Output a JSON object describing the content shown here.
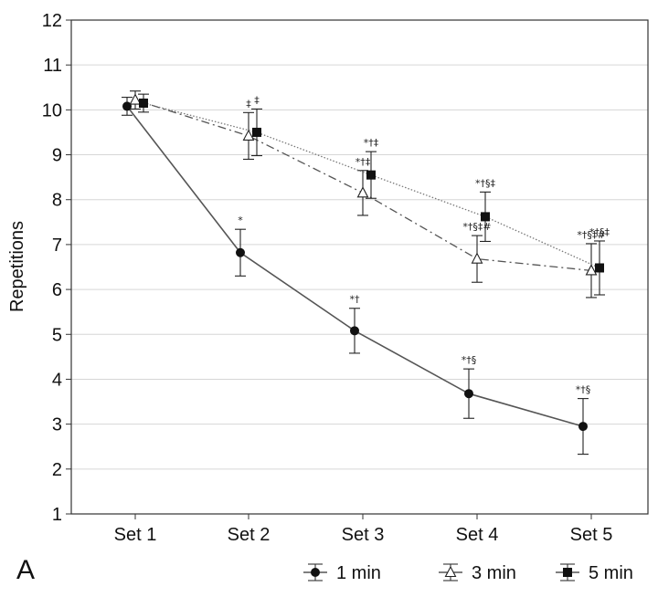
{
  "panel_label": "A",
  "chart_data": {
    "type": "line",
    "title": "",
    "xlabel": "",
    "ylabel": "Repetitions",
    "categories": [
      "Set 1",
      "Set 2",
      "Set 3",
      "Set 4",
      "Set 5"
    ],
    "ylim": [
      1,
      12
    ],
    "yticks": [
      1,
      2,
      3,
      4,
      5,
      6,
      7,
      8,
      9,
      10,
      11,
      12
    ],
    "grid": "horizontal",
    "legend_position": "bottom",
    "series": [
      {
        "name": "1 min",
        "marker": "circle-filled",
        "line": "solid",
        "values": [
          10.08,
          6.82,
          5.08,
          3.68,
          2.95
        ],
        "errors": [
          0.2,
          0.52,
          0.5,
          0.55,
          0.62
        ],
        "annotations": [
          "",
          "*",
          "*†",
          "*†§",
          "*†§"
        ]
      },
      {
        "name": "3 min",
        "marker": "triangle-open",
        "line": "dashdot",
        "values": [
          10.22,
          9.42,
          8.15,
          6.68,
          6.42
        ],
        "errors": [
          0.2,
          0.52,
          0.5,
          0.52,
          0.6
        ],
        "annotations": [
          "",
          "‡",
          "*†‡",
          "*†§‡#",
          "*†§‡#"
        ]
      },
      {
        "name": "5 min",
        "marker": "square-filled",
        "line": "dotted",
        "values": [
          10.15,
          9.5,
          8.55,
          7.62,
          6.48
        ],
        "errors": [
          0.2,
          0.52,
          0.52,
          0.55,
          0.6
        ],
        "annotations": [
          "",
          "‡",
          "*†‡",
          "*†§‡",
          "*†§‡"
        ]
      }
    ]
  }
}
